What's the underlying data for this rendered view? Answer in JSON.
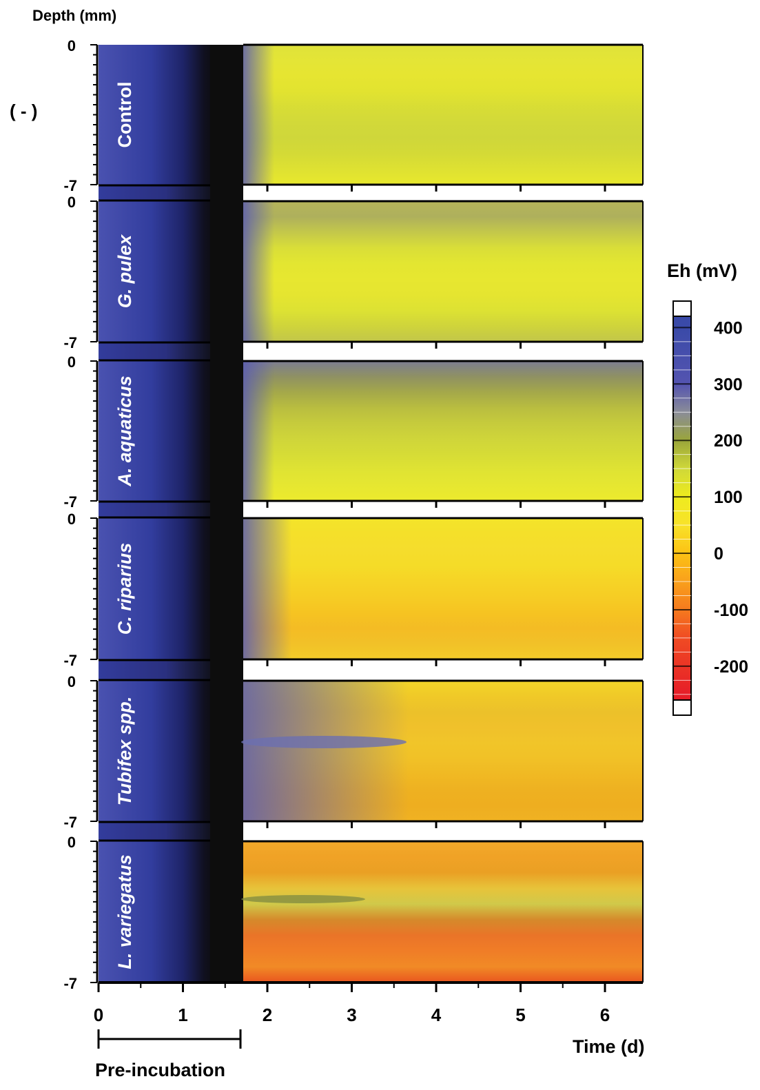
{
  "figure": {
    "y_axis_title": "Depth (mm)",
    "control_symbol": "( - )",
    "x_axis_title": "Time (d)",
    "preincubation_label": "Pre-incubation",
    "colorbar_title": "Eh (mV)"
  },
  "chart_data": {
    "type": "heatmap",
    "xlabel": "Time (d)",
    "ylabel": "Depth (mm)",
    "xlim": [
      0,
      6.45
    ],
    "ylim": [
      0,
      -7
    ],
    "x_ticks": [
      "0",
      "1",
      "2",
      "3",
      "4",
      "5",
      "6"
    ],
    "y_tick_labels": {
      "top": "0",
      "bottom": "-7"
    },
    "preincubation_range": [
      0,
      1.68
    ],
    "colorbar": {
      "title": "Eh (mV)",
      "range": [
        -260,
        420
      ],
      "ticks": [
        "400",
        "300",
        "200",
        "100",
        "0",
        "-100",
        "-200"
      ],
      "tick_values": [
        400,
        300,
        200,
        100,
        0,
        -100,
        -200
      ],
      "colors": [
        {
          "v": -250,
          "c": "#e61e28"
        },
        {
          "v": -150,
          "c": "#f04b23"
        },
        {
          "v": -100,
          "c": "#f57a1e"
        },
        {
          "v": -50,
          "c": "#f9a01c"
        },
        {
          "v": 0,
          "c": "#fcc214"
        },
        {
          "v": 50,
          "c": "#f8e22a"
        },
        {
          "v": 100,
          "c": "#eeeb1e"
        },
        {
          "v": 150,
          "c": "#cfd839"
        },
        {
          "v": 200,
          "c": "#9aa53a"
        },
        {
          "v": 250,
          "c": "#8a8c98"
        },
        {
          "v": 300,
          "c": "#5454b0"
        },
        {
          "v": 400,
          "c": "#3a4aa8"
        }
      ]
    },
    "panels": [
      {
        "name": "Control",
        "mean_eh_mv": [
          300,
          170,
          140,
          130,
          125,
          122,
          120,
          120
        ],
        "time_d": [
          1.7,
          2,
          2.5,
          3,
          3.5,
          4.5,
          5.5,
          6.45
        ]
      },
      {
        "name": "G. pulex",
        "mean_eh_mv": [
          260,
          190,
          175,
          170,
          168,
          165,
          160,
          155
        ],
        "time_d": [
          1.7,
          2,
          2.5,
          3,
          3.5,
          4.5,
          5.5,
          6.45
        ]
      },
      {
        "name": "A. aquaticus",
        "mean_eh_mv": [
          280,
          230,
          200,
          190,
          185,
          180,
          170,
          160
        ],
        "time_d": [
          1.7,
          2,
          2.5,
          3,
          3.5,
          4.5,
          5.5,
          6.45
        ]
      },
      {
        "name": "C. riparius",
        "mean_eh_mv": [
          290,
          200,
          80,
          50,
          40,
          30,
          25,
          20
        ],
        "time_d": [
          1.7,
          2,
          2.5,
          3,
          3.5,
          4.5,
          5.5,
          6.45
        ]
      },
      {
        "name": "Tubifex spp.",
        "mean_eh_mv": [
          300,
          250,
          200,
          150,
          100,
          40,
          10,
          -10
        ],
        "time_d": [
          1.7,
          2,
          2.5,
          3,
          3.5,
          4.5,
          5.5,
          6.45
        ]
      },
      {
        "name": "L. variegatus",
        "mean_eh_mv": [
          60,
          -60,
          -70,
          -80,
          -100,
          -40,
          0,
          20
        ],
        "time_d": [
          1.7,
          2,
          2.5,
          3,
          3.5,
          4.5,
          5.5,
          6.45
        ]
      }
    ]
  },
  "panel_gradients": [
    [
      "#dfe23a",
      "#e4e536",
      "#e6e531",
      "#e2e330",
      "#d8dd35",
      "#d2d939",
      "#cfd73a",
      "#d4da36",
      "#dee132",
      "#e8e82d"
    ],
    [
      "#b5b45a",
      "#aeb05c",
      "#c4c84a",
      "#d9de38",
      "#e3e631",
      "#e7e730",
      "#e5e530",
      "#dde233",
      "#cfd43b",
      "#c2c64a"
    ],
    [
      "#7c7d92",
      "#8f9163",
      "#a4a84a",
      "#b9bd40",
      "#c6cb3c",
      "#cfd53a",
      "#d6dc36",
      "#dfe333",
      "#e6e731",
      "#ecea2d"
    ],
    [
      "#f3e42a",
      "#f5e02a",
      "#f5dd2c",
      "#f5dc28",
      "#f6d426",
      "#f6cd24",
      "#f6c422",
      "#f4bc24",
      "#f2c128",
      "#f3cc29"
    ],
    [
      "#f3d629",
      "#f0c928",
      "#ecc12a",
      "#f0c12b",
      "#f1c529",
      "#f1c127",
      "#f0b923",
      "#eeb121",
      "#eeae20",
      "#f0b223"
    ],
    [
      "#f2a92a",
      "#f0a226",
      "#eaa024",
      "#e7c33a",
      "#d0c94a",
      "#d58a2b",
      "#ea7428",
      "#f07d27",
      "#f18a26",
      "#e9551f"
    ]
  ]
}
